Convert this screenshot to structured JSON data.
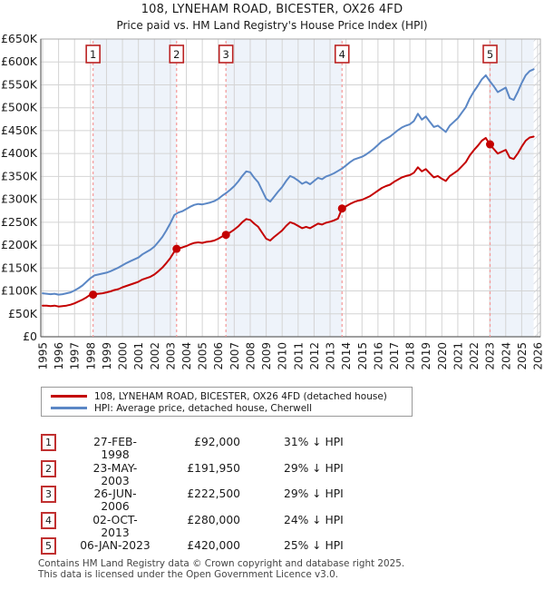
{
  "page": {
    "title": "108, LYNEHAM ROAD, BICESTER, OX26 4FD",
    "subtitle": "Price paid vs. HM Land Registry's House Price Index (HPI)",
    "footer_line1": "Contains HM Land Registry data © Crown copyright and database right 2025.",
    "footer_line2": "This data is licensed under the Open Government Licence v3.0."
  },
  "legend": {
    "entries": [
      {
        "label": "108, LYNEHAM ROAD, BICESTER, OX26 4FD (detached house)",
        "color": "#c40000"
      },
      {
        "label": "HPI: Average price, detached house, Cherwell",
        "color": "#5b87c5"
      }
    ]
  },
  "transactions": [
    {
      "num": "1",
      "date": "27-FEB-1998",
      "price": "£92,000",
      "vs_hpi": "31% ↓ HPI",
      "year": 1998.16,
      "value_k": 92
    },
    {
      "num": "2",
      "date": "23-MAY-2003",
      "price": "£191,950",
      "vs_hpi": "29% ↓ HPI",
      "year": 2003.39,
      "value_k": 191.95
    },
    {
      "num": "3",
      "date": "26-JUN-2006",
      "price": "£222,500",
      "vs_hpi": "29% ↓ HPI",
      "year": 2006.48,
      "value_k": 222.5
    },
    {
      "num": "4",
      "date": "02-OCT-2013",
      "price": "£280,000",
      "vs_hpi": "24% ↓ HPI",
      "year": 2013.75,
      "value_k": 280
    },
    {
      "num": "5",
      "date": "06-JAN-2023",
      "price": "£420,000",
      "vs_hpi": "25% ↓ HPI",
      "year": 2023.02,
      "value_k": 420
    }
  ],
  "chart_data": {
    "type": "line",
    "title": "108, LYNEHAM ROAD, BICESTER, OX26 4FD — Price paid vs. HPI",
    "unit": "GBP_thousands",
    "x_range_year": [
      1995,
      2026
    ],
    "ylim_k": [
      0,
      650
    ],
    "grid": true,
    "legend_position": "below",
    "x_start": 1995,
    "x_step": 0.25,
    "x_tick_labels": [
      "1995",
      "1996",
      "1997",
      "1998",
      "1999",
      "2000",
      "2001",
      "2002",
      "2003",
      "2004",
      "2005",
      "2006",
      "2007",
      "2008",
      "2009",
      "2010",
      "2011",
      "2012",
      "2013",
      "2014",
      "2015",
      "2016",
      "2017",
      "2018",
      "2019",
      "2020",
      "2021",
      "2022",
      "2023",
      "2024",
      "2025",
      "2026"
    ],
    "y_tick_labels": [
      "£0",
      "£50K",
      "£100K",
      "£150K",
      "£200K",
      "£250K",
      "£300K",
      "£350K",
      "£400K",
      "£450K",
      "£500K",
      "£550K",
      "£600K",
      "£650K"
    ],
    "bands_between_sales": [
      [
        1998.16,
        2003.39
      ],
      [
        2006.48,
        2013.75
      ],
      [
        2023.02,
        2025.75
      ]
    ],
    "future_hatch_from_year": 2025.75,
    "series": [
      {
        "name": "HPI: Average price, detached house, Cherwell",
        "color": "#5b87c5",
        "values_k": [
          95,
          94,
          93,
          94,
          92,
          93,
          95,
          97,
          101,
          106,
          112,
          120,
          128,
          134,
          136,
          138,
          140,
          143,
          147,
          151,
          156,
          161,
          165,
          169,
          173,
          180,
          185,
          190,
          197,
          207,
          218,
          232,
          248,
          266,
          271,
          274,
          279,
          284,
          288,
          290,
          289,
          291,
          293,
          296,
          301,
          308,
          314,
          321,
          329,
          339,
          351,
          361,
          359,
          347,
          337,
          319,
          301,
          295,
          306,
          317,
          327,
          340,
          351,
          347,
          341,
          334,
          338,
          333,
          340,
          347,
          344,
          350,
          353,
          357,
          362,
          367,
          374,
          381,
          387,
          390,
          393,
          398,
          404,
          411,
          419,
          427,
          432,
          437,
          444,
          451,
          457,
          461,
          464,
          471,
          487,
          474,
          481,
          469,
          458,
          461,
          454,
          447,
          461,
          469,
          477,
          489,
          501,
          520,
          535,
          548,
          562,
          571,
          558,
          547,
          534,
          539,
          544,
          521,
          517,
          534,
          554,
          571,
          580,
          584
        ]
      },
      {
        "name": "108, LYNEHAM ROAD, BICESTER, OX26 4FD (detached house)",
        "color": "#c40000",
        "values_k": [
          68,
          68,
          67,
          68,
          66,
          67,
          68,
          70,
          73,
          77,
          81,
          86,
          92,
          93,
          94,
          95,
          97,
          99,
          102,
          104,
          108,
          111,
          114,
          117,
          120,
          125,
          128,
          131,
          136,
          143,
          151,
          161,
          172,
          186,
          193,
          195,
          198,
          202,
          205,
          206,
          205,
          207,
          208,
          210,
          214,
          219,
          223,
          228,
          234,
          241,
          250,
          257,
          255,
          247,
          240,
          227,
          214,
          210,
          218,
          225,
          232,
          242,
          250,
          247,
          242,
          237,
          240,
          237,
          242,
          247,
          245,
          249,
          251,
          254,
          258,
          280,
          285,
          290,
          294,
          297,
          299,
          303,
          307,
          313,
          319,
          325,
          329,
          332,
          338,
          343,
          348,
          351,
          353,
          358,
          370,
          361,
          366,
          357,
          348,
          351,
          345,
          340,
          351,
          357,
          363,
          372,
          381,
          396,
          407,
          417,
          428,
          434,
          420,
          410,
          400,
          404,
          408,
          391,
          388,
          400,
          415,
          428,
          435,
          437
        ]
      }
    ],
    "sale_points": [
      {
        "label": "1",
        "year": 1998.16,
        "value_k": 92
      },
      {
        "label": "2",
        "year": 2003.39,
        "value_k": 191.95
      },
      {
        "label": "3",
        "year": 2006.48,
        "value_k": 222.5
      },
      {
        "label": "4",
        "year": 2013.75,
        "value_k": 280
      },
      {
        "label": "5",
        "year": 2023.02,
        "value_k": 420
      }
    ],
    "colors": {
      "price_paid_line": "#c40000",
      "hpi_line": "#5b87c5",
      "sale_dot": "#c40000",
      "dashed_marker_line": "#f49898",
      "marker_box_border": "#bb2222",
      "ownership_band_fill": "#eef3fa",
      "grid": "#d4d4d4",
      "axis": "#666666",
      "plot_border": "#aaaaaa",
      "hatch": "#c6cad2"
    }
  }
}
